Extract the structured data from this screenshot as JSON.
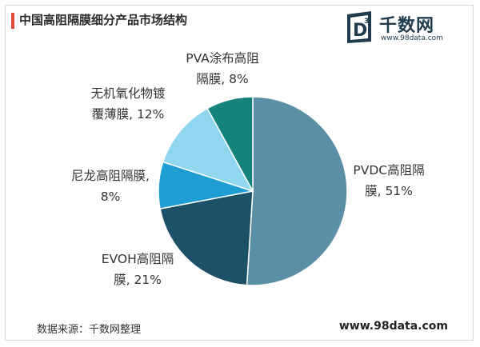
{
  "header": {
    "title": "中国高阻隔膜细分产品市场结构"
  },
  "logo": {
    "name": "千数网",
    "url": "www.98data.com",
    "icon": "d3-logo-icon"
  },
  "chart_data": {
    "type": "pie",
    "title": "中国高阻隔膜细分产品市场结构",
    "unit": "%",
    "slices": [
      {
        "name": "PVDC高阻隔膜",
        "label_lines": [
          "PVDC高阻隔",
          "膜, 51%"
        ],
        "value": 51,
        "color": "#5b8fa5"
      },
      {
        "name": "EVOH高阻隔膜",
        "label_lines": [
          "EVOH高阻隔",
          "膜, 21%"
        ],
        "value": 21,
        "color": "#1d5168"
      },
      {
        "name": "尼龙高阻隔膜",
        "label_lines": [
          "尼龙高阻隔膜,",
          "8%"
        ],
        "value": 8,
        "color": "#1f9ed3"
      },
      {
        "name": "无机氧化物镀覆薄膜",
        "label_lines": [
          "无机氧化物镀",
          "覆薄膜, 12%"
        ],
        "value": 12,
        "color": "#8fd6ef"
      },
      {
        "name": "PVA涂布高阻隔膜",
        "label_lines": [
          "PVA涂布高阻",
          "隔膜, 8%"
        ],
        "value": 8,
        "color": "#13837c"
      }
    ]
  },
  "footer": {
    "source": "数据来源：千数网整理",
    "website": "www.98data.com"
  }
}
